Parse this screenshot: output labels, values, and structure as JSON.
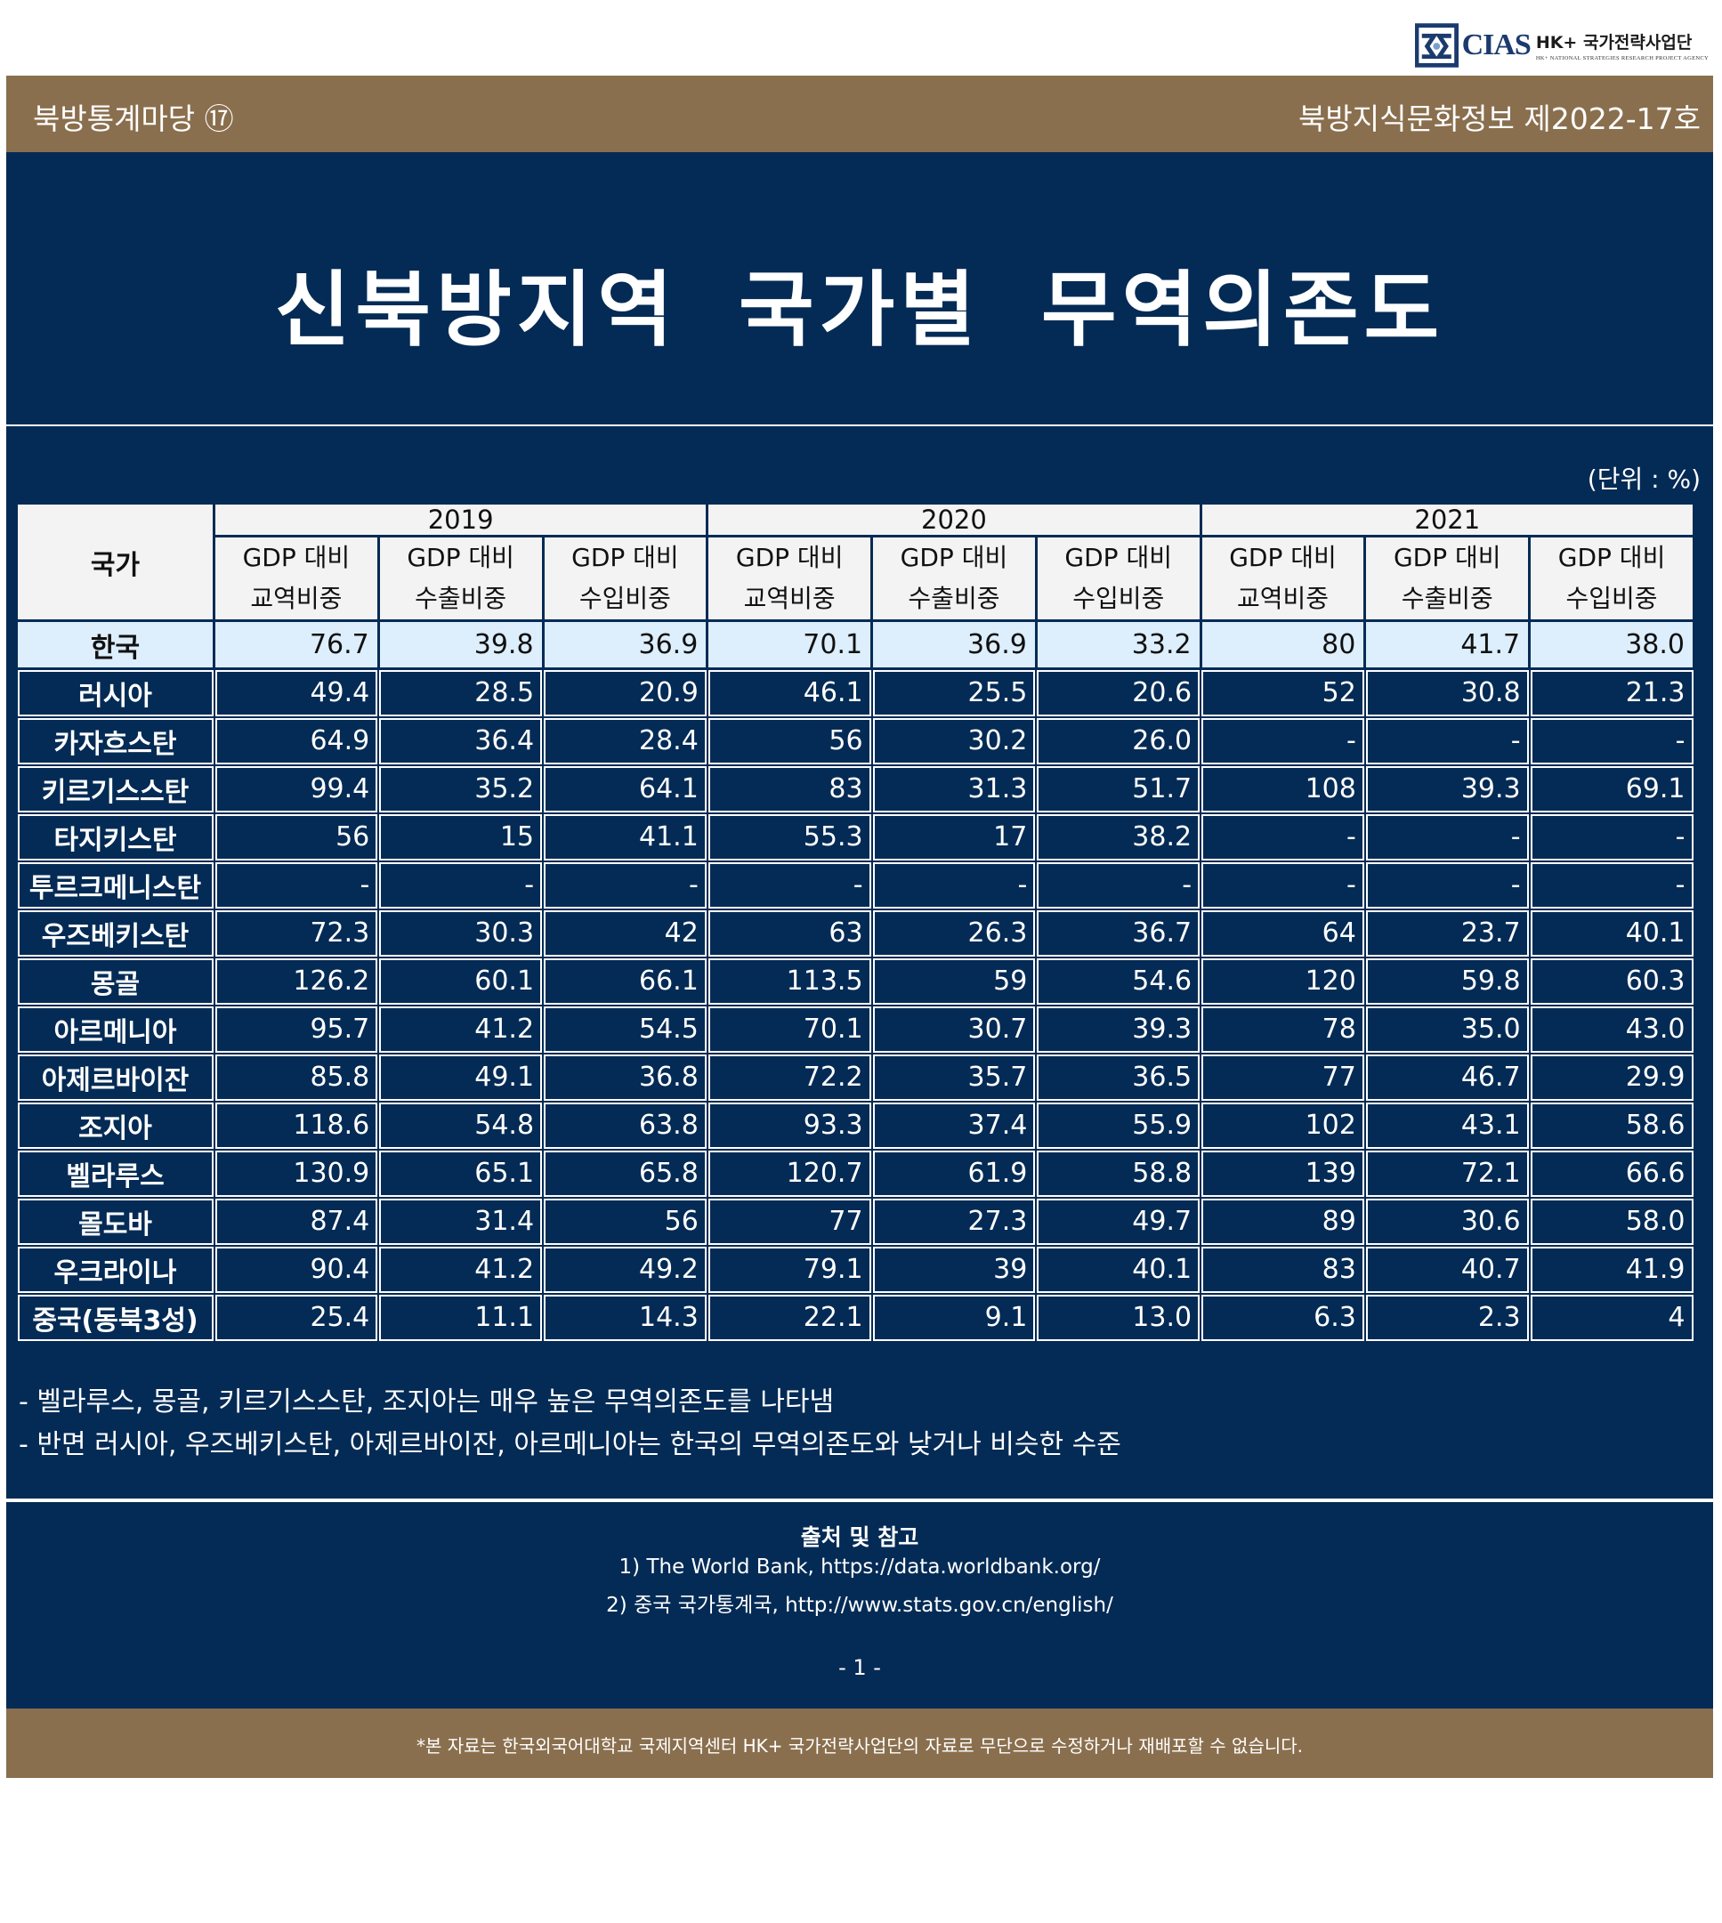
{
  "logo": {
    "brand": "CIAS",
    "org": "HK+ 국가전략사업단",
    "sub": "HK+ NATIONAL STRATEGIES RESEARCH PROJECT AGENCY"
  },
  "header": {
    "series": "북방통계마당 ⑰",
    "issue": "북방지식문화정보 제2022-17호"
  },
  "title": "신북방지역 국가별 무역의존도",
  "unit": "(단위 : %)",
  "table": {
    "country_header": "국가",
    "years": [
      "2019",
      "2020",
      "2021"
    ],
    "sub_headers": [
      [
        "GDP 대비",
        "교역비중"
      ],
      [
        "GDP 대비",
        "수출비중"
      ],
      [
        "GDP 대비",
        "수입비중"
      ]
    ],
    "rows": [
      {
        "country": "한국",
        "values": [
          "76.7",
          "39.8",
          "36.9",
          "70.1",
          "36.9",
          "33.2",
          "80",
          "41.7",
          "38.0"
        ]
      },
      {
        "country": "러시아",
        "values": [
          "49.4",
          "28.5",
          "20.9",
          "46.1",
          "25.5",
          "20.6",
          "52",
          "30.8",
          "21.3"
        ]
      },
      {
        "country": "카자흐스탄",
        "values": [
          "64.9",
          "36.4",
          "28.4",
          "56",
          "30.2",
          "26.0",
          "-",
          "-",
          "-"
        ]
      },
      {
        "country": "키르기스스탄",
        "values": [
          "99.4",
          "35.2",
          "64.1",
          "83",
          "31.3",
          "51.7",
          "108",
          "39.3",
          "69.1"
        ]
      },
      {
        "country": "타지키스탄",
        "values": [
          "56",
          "15",
          "41.1",
          "55.3",
          "17",
          "38.2",
          "-",
          "-",
          "-"
        ]
      },
      {
        "country": "투르크메니스탄",
        "values": [
          "-",
          "-",
          "-",
          "-",
          "-",
          "-",
          "-",
          "-",
          "-"
        ]
      },
      {
        "country": "우즈베키스탄",
        "values": [
          "72.3",
          "30.3",
          "42",
          "63",
          "26.3",
          "36.7",
          "64",
          "23.7",
          "40.1"
        ]
      },
      {
        "country": "몽골",
        "values": [
          "126.2",
          "60.1",
          "66.1",
          "113.5",
          "59",
          "54.6",
          "120",
          "59.8",
          "60.3"
        ]
      },
      {
        "country": "아르메니아",
        "values": [
          "95.7",
          "41.2",
          "54.5",
          "70.1",
          "30.7",
          "39.3",
          "78",
          "35.0",
          "43.0"
        ]
      },
      {
        "country": "아제르바이잔",
        "values": [
          "85.8",
          "49.1",
          "36.8",
          "72.2",
          "35.7",
          "36.5",
          "77",
          "46.7",
          "29.9"
        ]
      },
      {
        "country": "조지아",
        "values": [
          "118.6",
          "54.8",
          "63.8",
          "93.3",
          "37.4",
          "55.9",
          "102",
          "43.1",
          "58.6"
        ]
      },
      {
        "country": "벨라루스",
        "values": [
          "130.9",
          "65.1",
          "65.8",
          "120.7",
          "61.9",
          "58.8",
          "139",
          "72.1",
          "66.6"
        ]
      },
      {
        "country": "몰도바",
        "values": [
          "87.4",
          "31.4",
          "56",
          "77",
          "27.3",
          "49.7",
          "89",
          "30.6",
          "58.0"
        ]
      },
      {
        "country": "우크라이나",
        "values": [
          "90.4",
          "41.2",
          "49.2",
          "79.1",
          "39",
          "40.1",
          "83",
          "40.7",
          "41.9"
        ]
      },
      {
        "country": "중국(동북3성)",
        "values": [
          "25.4",
          "11.1",
          "14.3",
          "22.1",
          "9.1",
          "13.0",
          "6.3",
          "2.3",
          "4"
        ]
      }
    ]
  },
  "notes": [
    "- 벨라루스, 몽골, 키르기스스탄, 조지아는 매우 높은 무역의존도를 나타냄",
    "- 반면 러시아, 우즈베키스탄, 아제르바이잔, 아르메니아는 한국의 무역의존도와 낮거나 비슷한 수준"
  ],
  "source": {
    "title": "출처 및 참고",
    "lines": [
      "1) The World Bank, https://data.worldbank.org/",
      "2) 중국 국가통계국, http://www.stats.gov.cn/english/"
    ]
  },
  "page_number": "-  1  -",
  "disclaimer": "*본 자료는 한국외국어대학교 국제지역센터 HK+ 국가전략사업단의 자료로 무단으로 수정하거나 재배포할 수 없습니다.",
  "colors": {
    "navy": "#042b55",
    "brown": "#8a6f4e",
    "korea_row": "#ddeefc"
  }
}
